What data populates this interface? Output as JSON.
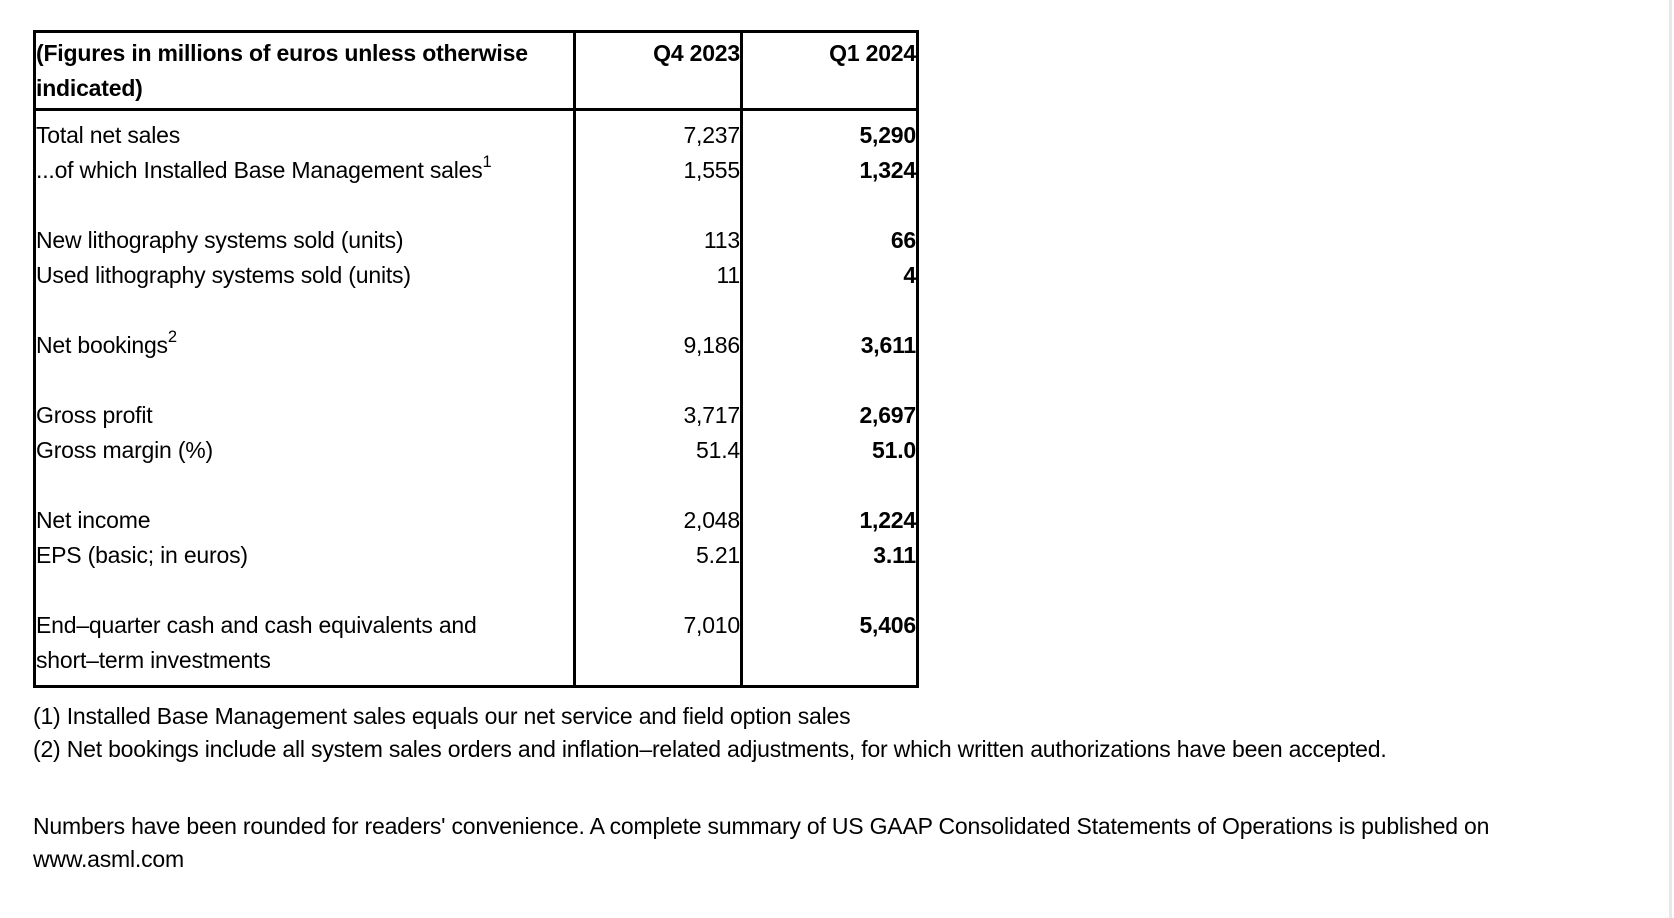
{
  "table": {
    "caption_lines": [
      "(Figures in millions of euros unless otherwise",
      "indicated)"
    ],
    "columns": [
      "Q4 2023",
      "Q1 2024"
    ],
    "rows": [
      {
        "label": "Total net sales",
        "q4_2023": "7,237",
        "q1_2024": "5,290"
      },
      {
        "label": "...of which Installed Base Management sales",
        "sup": "1",
        "q4_2023": "1,555",
        "q1_2024": "1,324"
      },
      {
        "blank": true
      },
      {
        "label": "New lithography systems sold (units)",
        "q4_2023": "113",
        "q1_2024": "66"
      },
      {
        "label": "Used lithography systems sold (units)",
        "q4_2023": "11",
        "q1_2024": "4"
      },
      {
        "blank": true
      },
      {
        "label": "Net bookings",
        "sup": "2",
        "q4_2023": "9,186",
        "q1_2024": "3,611"
      },
      {
        "blank": true
      },
      {
        "label": "Gross profit",
        "q4_2023": "3,717",
        "q1_2024": "2,697"
      },
      {
        "label": "Gross margin (%)",
        "q4_2023": "51.4",
        "q1_2024": "51.0"
      },
      {
        "blank": true
      },
      {
        "label": "Net income",
        "q4_2023": "2,048",
        "q1_2024": "1,224"
      },
      {
        "label": "EPS (basic; in euros)",
        "q4_2023": "5.21",
        "q1_2024": "3.11"
      },
      {
        "blank": true
      },
      {
        "label_lines": [
          "End–quarter cash and cash equivalents and",
          "short–term investments"
        ],
        "q4_2023": "7,010",
        "q1_2024": "5,406"
      }
    ]
  },
  "footnotes": [
    "(1) Installed Base Management sales equals our net service and field option sales",
    "(2) Net bookings include all system sales orders and inflation–related adjustments, for which written authorizations have been accepted."
  ],
  "note": {
    "line1": "Numbers have been rounded for readers' convenience. A complete summary of US GAAP Consolidated Statements of Operations is published on",
    "line2": "www.asml.com"
  }
}
